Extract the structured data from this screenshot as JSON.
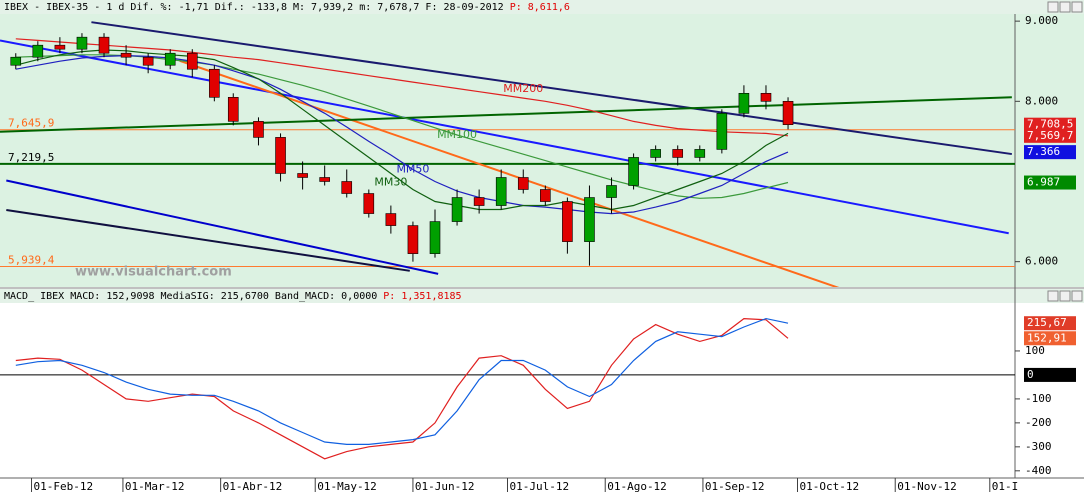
{
  "chart_data": [
    {
      "type": "candlestick",
      "header": [
        "IBEX - IBEX-35 - 1 d Dif. %: -1,71 Dif.: -133,8 M: 7,939,2 m: 7,678,7 F: 28-09-2012",
        "P: 8,611,6"
      ],
      "watermark": "www.visualchart.com",
      "x": [
        "2012-01-27",
        "2012-02-03",
        "2012-02-10",
        "2012-02-17",
        "2012-02-24",
        "2012-03-02",
        "2012-03-09",
        "2012-03-16",
        "2012-03-23",
        "2012-03-30",
        "2012-04-05",
        "2012-04-13",
        "2012-04-20",
        "2012-04-27",
        "2012-05-04",
        "2012-05-11",
        "2012-05-18",
        "2012-05-25",
        "2012-06-01",
        "2012-06-08",
        "2012-06-15",
        "2012-06-22",
        "2012-06-29",
        "2012-07-06",
        "2012-07-13",
        "2012-07-20",
        "2012-07-27",
        "2012-08-03",
        "2012-08-10",
        "2012-08-17",
        "2012-08-24",
        "2012-08-31",
        "2012-09-07",
        "2012-09-14",
        "2012-09-21",
        "2012-09-28"
      ],
      "open": [
        8450,
        8550,
        8700,
        8650,
        8800,
        8600,
        8550,
        8450,
        8600,
        8400,
        8050,
        7750,
        7550,
        7100,
        7050,
        7000,
        6850,
        6600,
        6450,
        6100,
        6500,
        6800,
        6700,
        7050,
        6900,
        6750,
        6250,
        6800,
        6950,
        7300,
        7400,
        7300,
        7400,
        7850,
        8100,
        8000
      ],
      "high": [
        8600,
        8750,
        8800,
        8850,
        8850,
        8700,
        8600,
        8650,
        8650,
        8450,
        8100,
        7800,
        7600,
        7250,
        7200,
        7150,
        6900,
        6700,
        6500,
        6650,
        6900,
        6900,
        7150,
        7150,
        6950,
        6800,
        6950,
        7050,
        7350,
        7450,
        7450,
        7450,
        7900,
        8200,
        8200,
        8050
      ],
      "low": [
        8400,
        8500,
        8600,
        8600,
        8550,
        8450,
        8350,
        8400,
        8300,
        8000,
        7700,
        7450,
        7000,
        6900,
        6950,
        6800,
        6550,
        6350,
        6000,
        6050,
        6450,
        6600,
        6650,
        6850,
        6700,
        6100,
        5950,
        6600,
        6900,
        7250,
        7200,
        7250,
        7350,
        7800,
        7900,
        7650
      ],
      "close": [
        8550,
        8700,
        8650,
        8800,
        8600,
        8550,
        8450,
        8600,
        8400,
        8050,
        7750,
        7550,
        7100,
        7050,
        7000,
        6850,
        6600,
        6450,
        6100,
        6500,
        6800,
        6700,
        7050,
        6900,
        6750,
        6250,
        6800,
        6950,
        7300,
        7400,
        7300,
        7400,
        7850,
        8100,
        8000,
        7708.5
      ],
      "up_color": "#00a000",
      "down_color": "#e00000",
      "xlim": [
        "2012-01-22",
        "2012-12-09"
      ],
      "ylim": [
        5684,
        9089
      ],
      "yticks": [
        {
          "value": 9000,
          "label": "9.000"
        },
        {
          "value": 8000,
          "label": "8.000"
        },
        {
          "value": 6000,
          "label": "6.000"
        }
      ],
      "series": [
        {
          "name": "MM200",
          "color": "#e02020",
          "values": [
            8780,
            8760,
            8740,
            8720,
            8700,
            8680,
            8660,
            8640,
            8610,
            8580,
            8550,
            8520,
            8480,
            8440,
            8400,
            8360,
            8320,
            8280,
            8240,
            8200,
            8160,
            8120,
            8080,
            8040,
            8000,
            7950,
            7890,
            7820,
            7750,
            7700,
            7660,
            7640,
            7620,
            7610,
            7600,
            7569.7
          ]
        },
        {
          "name": "MM100",
          "color": "#3c9a3c",
          "values": [
            8550,
            8560,
            8570,
            8580,
            8580,
            8570,
            8550,
            8520,
            8490,
            8450,
            8400,
            8340,
            8270,
            8200,
            8120,
            8030,
            7940,
            7850,
            7760,
            7670,
            7580,
            7500,
            7420,
            7340,
            7260,
            7180,
            7100,
            7020,
            6950,
            6880,
            6820,
            6790,
            6800,
            6850,
            6920,
            6987
          ]
        },
        {
          "name": "MM50",
          "color": "#2020c0",
          "values": [
            8400,
            8450,
            8500,
            8540,
            8560,
            8570,
            8560,
            8540,
            8500,
            8450,
            8380,
            8280,
            8150,
            8000,
            7850,
            7680,
            7500,
            7330,
            7150,
            7000,
            6880,
            6800,
            6750,
            6700,
            6680,
            6650,
            6620,
            6600,
            6620,
            6680,
            6750,
            6850,
            6950,
            7100,
            7250,
            7366
          ]
        },
        {
          "name": "MM30",
          "color": "#106010",
          "values": [
            8450,
            8520,
            8580,
            8620,
            8640,
            8630,
            8600,
            8580,
            8560,
            8520,
            8420,
            8280,
            8100,
            7900,
            7700,
            7500,
            7300,
            7100,
            6900,
            6750,
            6700,
            6650,
            6650,
            6700,
            6700,
            6750,
            6700,
            6650,
            6700,
            6800,
            6900,
            7000,
            7100,
            7250,
            7450,
            7600
          ]
        }
      ],
      "levels": [
        {
          "value": 7645.9,
          "label": "7,645,9",
          "color": "#ff7a30"
        },
        {
          "value": 7219.5,
          "label": "7,219,5",
          "color": "#006400"
        },
        {
          "value": 5939.4,
          "label": "5,939,4",
          "color": "#ff7a30"
        }
      ],
      "trendlines": [
        {
          "x": [
            "2012-01-22",
            "2012-12-07"
          ],
          "values": [
            8759,
            6354
          ],
          "color": "#1a1aff"
        },
        {
          "x": [
            "2012-02-20",
            "2012-12-08"
          ],
          "values": [
            8987,
            7342
          ],
          "color": "#1a1a6e"
        },
        {
          "x": [
            "2012-03-19",
            "2012-10-18"
          ],
          "values": [
            8506,
            5620
          ],
          "color": "#ff6a1a"
        },
        {
          "x": [
            "2012-01-22",
            "2012-12-08"
          ],
          "values": [
            7620,
            8050
          ],
          "color": "#006400"
        },
        {
          "x": [
            "2012-01-24",
            "2012-06-09"
          ],
          "values": [
            7012,
            5848
          ],
          "color": "#0000cc"
        },
        {
          "x": [
            "2012-01-24",
            "2012-05-31"
          ],
          "values": [
            6645,
            5886
          ],
          "color": "#101040"
        }
      ],
      "value_boxes": [
        {
          "value": 7708.5,
          "label": "7,708,5",
          "color": "#e02020"
        },
        {
          "value": 7569.7,
          "label": "7,569,7",
          "color": "#e02020"
        },
        {
          "value": 7366,
          "label": "7.366",
          "color": "#1010e0"
        },
        {
          "value": 6987,
          "label": "6.987",
          "color": "#008a00"
        }
      ]
    },
    {
      "type": "line",
      "header": [
        "MACD_ IBEX MACD: 152,9098 MediaSIG: 215,6700 Band_MACD: 0,0000",
        "P: 1,351,8185"
      ],
      "x": [
        "2012-01-27",
        "2012-02-03",
        "2012-02-10",
        "2012-02-17",
        "2012-02-24",
        "2012-03-02",
        "2012-03-09",
        "2012-03-16",
        "2012-03-23",
        "2012-03-30",
        "2012-04-05",
        "2012-04-13",
        "2012-04-20",
        "2012-04-27",
        "2012-05-04",
        "2012-05-11",
        "2012-05-18",
        "2012-05-25",
        "2012-06-01",
        "2012-06-08",
        "2012-06-15",
        "2012-06-22",
        "2012-06-29",
        "2012-07-06",
        "2012-07-13",
        "2012-07-20",
        "2012-07-27",
        "2012-08-03",
        "2012-08-10",
        "2012-08-17",
        "2012-08-24",
        "2012-08-31",
        "2012-09-07",
        "2012-09-14",
        "2012-09-21",
        "2012-09-28"
      ],
      "series": [
        {
          "color": "#e02020",
          "values": [
            60,
            70,
            65,
            20,
            -40,
            -100,
            -110,
            -95,
            -80,
            -90,
            -150,
            -200,
            -250,
            -300,
            -350,
            -320,
            -300,
            -290,
            -280,
            -200,
            -50,
            70,
            80,
            40,
            -60,
            -140,
            -110,
            40,
            150,
            210,
            170,
            140,
            165,
            235,
            230,
            152.9098
          ]
        },
        {
          "color": "#1060e0",
          "values": [
            40,
            55,
            60,
            40,
            10,
            -30,
            -60,
            -80,
            -85,
            -85,
            -110,
            -150,
            -200,
            -240,
            -280,
            -290,
            -290,
            -280,
            -270,
            -250,
            -150,
            -20,
            60,
            60,
            20,
            -50,
            -90,
            -40,
            60,
            140,
            180,
            170,
            160,
            200,
            235,
            215.67
          ]
        }
      ],
      "band": 0,
      "xlim": [
        "2012-01-22",
        "2012-12-09"
      ],
      "ylim": [
        -430,
        300
      ],
      "yticks": [
        100,
        -100,
        -200,
        -300,
        -400
      ],
      "xticks": [
        {
          "value": "2012-02-01",
          "label": "01-Feb-12"
        },
        {
          "value": "2012-03-01",
          "label": "01-Mar-12"
        },
        {
          "value": "2012-04-01",
          "label": "01-Abr-12"
        },
        {
          "value": "2012-05-01",
          "label": "01-May-12"
        },
        {
          "value": "2012-06-01",
          "label": "01-Jun-12"
        },
        {
          "value": "2012-07-01",
          "label": "01-Jul-12"
        },
        {
          "value": "2012-08-01",
          "label": "01-Ago-12"
        },
        {
          "value": "2012-09-01",
          "label": "01-Sep-12"
        },
        {
          "value": "2012-10-01",
          "label": "01-Oct-12"
        },
        {
          "value": "2012-11-01",
          "label": "01-Nov-12"
        },
        {
          "value": "2012-12-01",
          "label": "01-I"
        }
      ],
      "value_boxes": [
        {
          "value": 215.67,
          "label": "215,67",
          "color": "#e03c28"
        },
        {
          "value": 152.91,
          "label": "152,91",
          "color": "#f06030"
        },
        {
          "value": 0,
          "label": "0",
          "color": "#000000"
        }
      ]
    }
  ]
}
